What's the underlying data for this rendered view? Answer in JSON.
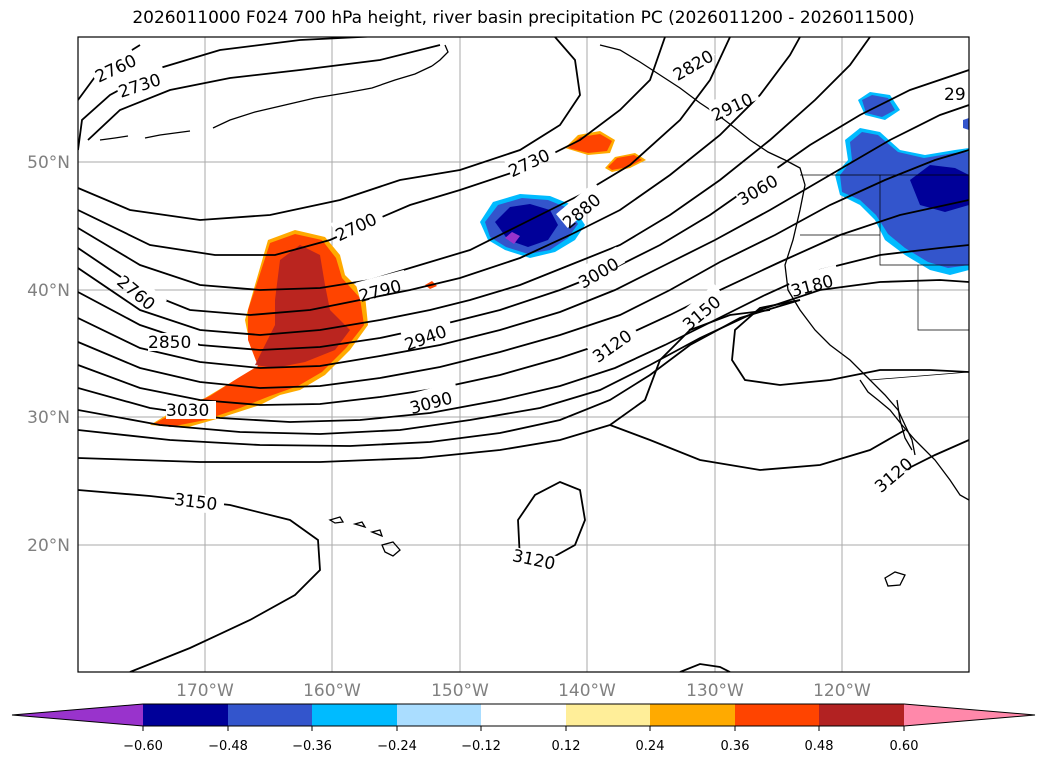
{
  "title": "2026011000 F024 700 hPa height, river basin precipitation PC (2026011200 - 2026011500)",
  "map": {
    "lat_labels": [
      "50°N",
      "40°N",
      "30°N",
      "20°N"
    ],
    "lon_labels": [
      "170°W",
      "160°W",
      "150°W",
      "140°W",
      "130°W",
      "120°W"
    ],
    "contour_labels": [
      "2760",
      "2730",
      "2820",
      "2910",
      "29",
      "2730",
      "2700",
      "2880",
      "3060",
      "2760",
      "2790",
      "3000",
      "3180",
      "2850",
      "2940",
      "3120",
      "3150",
      "3030",
      "3090",
      "3150",
      "3120",
      "3120"
    ]
  },
  "colorbar": {
    "colors": [
      "#9933cc",
      "#000099",
      "#3355cc",
      "#00bbff",
      "#aaddff",
      "#ffffff",
      "#ffee99",
      "#ffaa00",
      "#ff4400",
      "#b22222",
      "#ff88aa"
    ],
    "ticks": [
      "−0.60",
      "−0.48",
      "−0.36",
      "−0.24",
      "−0.12",
      "0.12",
      "0.24",
      "0.36",
      "0.48",
      "0.60"
    ]
  }
}
